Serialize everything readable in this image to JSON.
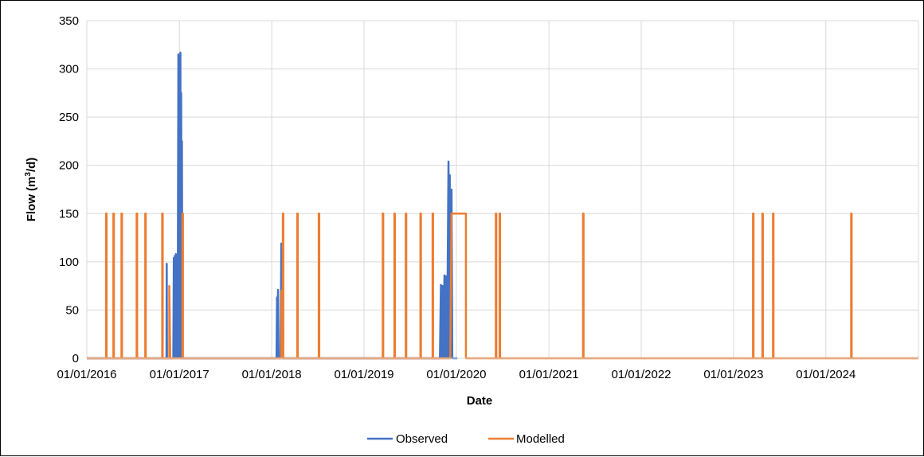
{
  "chart_data": {
    "type": "line",
    "xlabel": "Date",
    "ylabel": "Flow (m³/d)",
    "ylabel_parts": {
      "pre": "Flow (m",
      "sup": "3",
      "post": "/d)"
    },
    "ylim": [
      0,
      350
    ],
    "y_ticks": [
      "0",
      "50",
      "100",
      "150",
      "200",
      "250",
      "300",
      "350"
    ],
    "xlim": [
      "2016-01-01",
      "2024-12-31"
    ],
    "x_ticks": [
      "01/01/2016",
      "01/01/2017",
      "01/01/2018",
      "01/01/2019",
      "01/01/2020",
      "01/01/2021",
      "01/01/2022",
      "01/01/2023",
      "01/01/2024"
    ],
    "grid": "vertical and horizontal",
    "legend_position": "bottom",
    "colors": {
      "observed": "#4472C4",
      "modelled": "#ED7D31",
      "grid": "#D9D9D9"
    },
    "series": [
      {
        "name": "Observed",
        "color": "#4472C4",
        "points": [
          [
            "2016-01-01",
            0
          ],
          [
            "2016-11-11",
            0
          ],
          [
            "2016-11-12",
            98
          ],
          [
            "2016-11-13",
            0
          ],
          [
            "2016-12-08",
            0
          ],
          [
            "2016-12-10",
            104
          ],
          [
            "2016-12-12",
            0
          ],
          [
            "2016-12-14",
            106
          ],
          [
            "2016-12-16",
            0
          ],
          [
            "2016-12-18",
            108
          ],
          [
            "2016-12-20",
            0
          ],
          [
            "2016-12-23",
            80
          ],
          [
            "2016-12-25",
            0
          ],
          [
            "2016-12-28",
            315
          ],
          [
            "2016-12-30",
            0
          ],
          [
            "2017-01-01",
            275
          ],
          [
            "2017-01-03",
            0
          ],
          [
            "2017-01-05",
            317
          ],
          [
            "2017-01-07",
            0
          ],
          [
            "2017-01-08",
            275
          ],
          [
            "2017-01-10",
            0
          ],
          [
            "2017-01-11",
            225
          ],
          [
            "2017-01-13",
            0
          ],
          [
            "2018-01-20",
            0
          ],
          [
            "2018-01-22",
            63
          ],
          [
            "2018-01-24",
            0
          ],
          [
            "2018-01-26",
            71
          ],
          [
            "2018-01-28",
            0
          ],
          [
            "2018-02-05",
            0
          ],
          [
            "2018-02-08",
            119
          ],
          [
            "2018-02-11",
            0
          ],
          [
            "2019-10-28",
            0
          ],
          [
            "2019-11-01",
            76
          ],
          [
            "2019-11-04",
            0
          ],
          [
            "2019-11-07",
            75
          ],
          [
            "2019-11-10",
            0
          ],
          [
            "2019-11-15",
            86
          ],
          [
            "2019-11-18",
            0
          ],
          [
            "2019-11-22",
            85
          ],
          [
            "2019-11-25",
            0
          ],
          [
            "2019-12-01",
            204
          ],
          [
            "2019-12-03",
            0
          ],
          [
            "2019-12-06",
            190
          ],
          [
            "2019-12-09",
            0
          ],
          [
            "2019-12-13",
            175
          ],
          [
            "2019-12-16",
            0
          ],
          [
            "2020-01-05",
            0
          ]
        ]
      },
      {
        "name": "Modelled",
        "color": "#ED7D31",
        "points": [
          [
            "2016-01-01",
            0
          ],
          [
            "2016-03-17",
            0
          ],
          [
            "2016-03-17",
            150
          ],
          [
            "2016-03-19",
            150
          ],
          [
            "2016-03-19",
            0
          ],
          [
            "2016-04-15",
            0
          ],
          [
            "2016-04-15",
            150
          ],
          [
            "2016-04-17",
            150
          ],
          [
            "2016-04-17",
            0
          ],
          [
            "2016-05-17",
            0
          ],
          [
            "2016-05-17",
            150
          ],
          [
            "2016-05-19",
            150
          ],
          [
            "2016-05-19",
            0
          ],
          [
            "2016-07-16",
            0
          ],
          [
            "2016-07-16",
            150
          ],
          [
            "2016-07-18",
            150
          ],
          [
            "2016-07-18",
            0
          ],
          [
            "2016-08-19",
            0
          ],
          [
            "2016-08-19",
            150
          ],
          [
            "2016-08-21",
            150
          ],
          [
            "2016-08-21",
            0
          ],
          [
            "2016-10-25",
            0
          ],
          [
            "2016-10-25",
            150
          ],
          [
            "2016-10-27",
            150
          ],
          [
            "2016-10-27",
            0
          ],
          [
            "2016-11-22",
            0
          ],
          [
            "2016-11-22",
            75
          ],
          [
            "2016-11-26",
            0
          ],
          [
            "2017-01-13",
            0
          ],
          [
            "2017-01-13",
            150
          ],
          [
            "2017-01-15",
            150
          ],
          [
            "2017-01-15",
            0
          ],
          [
            "2018-02-08",
            0
          ],
          [
            "2018-02-09",
            70
          ],
          [
            "2018-02-12",
            0
          ],
          [
            "2018-02-14",
            0
          ],
          [
            "2018-02-14",
            150
          ],
          [
            "2018-02-16",
            150
          ],
          [
            "2018-02-16",
            0
          ],
          [
            "2018-04-12",
            0
          ],
          [
            "2018-04-12",
            150
          ],
          [
            "2018-04-14",
            150
          ],
          [
            "2018-04-14",
            0
          ],
          [
            "2018-07-06",
            0
          ],
          [
            "2018-07-06",
            150
          ],
          [
            "2018-07-08",
            150
          ],
          [
            "2018-07-08",
            0
          ],
          [
            "2019-03-16",
            0
          ],
          [
            "2019-03-16",
            150
          ],
          [
            "2019-03-18",
            150
          ],
          [
            "2019-03-18",
            0
          ],
          [
            "2019-05-01",
            0
          ],
          [
            "2019-05-01",
            150
          ],
          [
            "2019-05-03",
            150
          ],
          [
            "2019-05-03",
            0
          ],
          [
            "2019-06-15",
            0
          ],
          [
            "2019-06-15",
            150
          ],
          [
            "2019-06-17",
            150
          ],
          [
            "2019-06-17",
            0
          ],
          [
            "2019-08-12",
            0
          ],
          [
            "2019-08-12",
            150
          ],
          [
            "2019-08-14",
            150
          ],
          [
            "2019-08-14",
            0
          ],
          [
            "2019-09-29",
            0
          ],
          [
            "2019-09-29",
            150
          ],
          [
            "2019-10-01",
            150
          ],
          [
            "2019-10-01",
            0
          ],
          [
            "2019-12-08",
            0
          ],
          [
            "2019-12-13",
            150
          ],
          [
            "2020-02-08",
            150
          ],
          [
            "2020-02-08",
            0
          ],
          [
            "2020-06-05",
            0
          ],
          [
            "2020-06-05",
            150
          ],
          [
            "2020-06-07",
            150
          ],
          [
            "2020-06-07",
            0
          ],
          [
            "2020-06-20",
            0
          ],
          [
            "2020-06-20",
            150
          ],
          [
            "2020-06-22",
            150
          ],
          [
            "2020-06-22",
            0
          ],
          [
            "2021-05-16",
            0
          ],
          [
            "2021-05-16",
            150
          ],
          [
            "2021-05-18",
            150
          ],
          [
            "2021-05-18",
            0
          ],
          [
            "2023-03-19",
            0
          ],
          [
            "2023-03-19",
            150
          ],
          [
            "2023-03-21",
            150
          ],
          [
            "2023-03-21",
            0
          ],
          [
            "2023-04-25",
            0
          ],
          [
            "2023-04-25",
            150
          ],
          [
            "2023-04-27",
            150
          ],
          [
            "2023-04-27",
            0
          ],
          [
            "2023-06-06",
            0
          ],
          [
            "2023-06-06",
            150
          ],
          [
            "2023-06-08",
            150
          ],
          [
            "2023-06-08",
            0
          ],
          [
            "2024-04-10",
            0
          ],
          [
            "2024-04-10",
            150
          ],
          [
            "2024-04-12",
            150
          ],
          [
            "2024-04-12",
            0
          ],
          [
            "2024-12-31",
            0
          ]
        ]
      }
    ]
  }
}
